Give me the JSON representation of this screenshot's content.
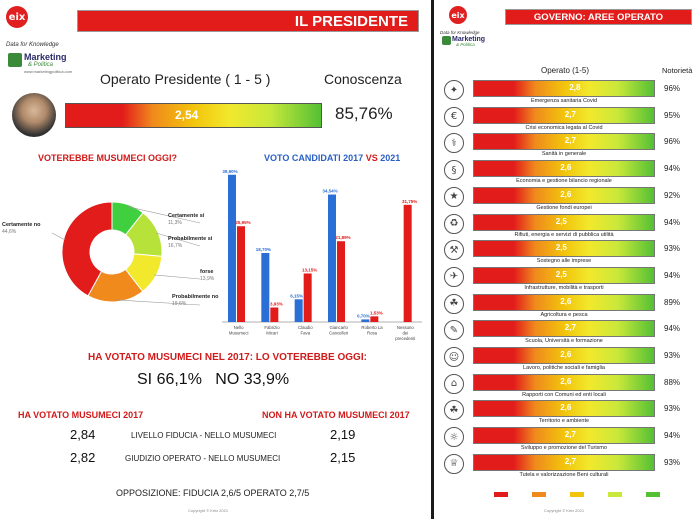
{
  "left": {
    "brand": {
      "logo_text": "eix",
      "tagline": "Data for Knowledge",
      "marketing": "Marketing",
      "politica": "& Politica",
      "site": "www.marketingpolitica.com"
    },
    "banner_title": "IL PRESIDENTE",
    "operato_label": "Operato Presidente ( 1 - 5 )",
    "operato_value": "2,54",
    "conoscenza_label": "Conoscenza",
    "conoscenza_value": "85,76%",
    "donut_title": "VOTEREBBE MUSUMECI OGGI?",
    "bar_title_a": "VOTO CANDIDATI 2017",
    "bar_title_vs": "VS",
    "bar_title_b": "2021",
    "ha_votato_title": "HA VOTATO MUSUMECI NEL 2017: LO VOTEREBBE OGGI:",
    "si_no": "SI 66,1%   NO 33,9%",
    "col_a_title": "HA VOTATO MUSUMECI 2017",
    "col_b_title": "NON HA VOTATO MUSUMECI 2017",
    "rows": [
      {
        "a": "2,84",
        "label": "LIVELLO FIDUCIA - NELLO MUSUMECI",
        "b": "2,19"
      },
      {
        "a": "2,82",
        "label": "GIUDIZIO OPERATO - NELLO MUSUMECI",
        "b": "2,15"
      }
    ],
    "opposizione": "OPPOSIZIONE: FIDUCIA 2,6/5 OPERATO 2,7/5",
    "copyright": "Copyright © Keix 2021"
  },
  "right": {
    "brand": {
      "logo_text": "eix",
      "tagline": "Data for Knowledge",
      "marketing": "Marketing",
      "politica": "& Politica"
    },
    "banner_title": "GOVERNO: AREE OPERATO",
    "col_operato": "Operato (1-5)",
    "col_notorieta": "Notorietà",
    "copyright": "Copyright © Keix 2021"
  },
  "colors": {
    "red": "#e21b1b",
    "blue": "#2a6fd6",
    "orange": "#f08a1c",
    "yellow": "#f2c40c",
    "lightyellow": "#f2e82c",
    "green": "#54c034"
  },
  "chart_data": [
    {
      "type": "pie",
      "title": "VOTEREBBE MUSUMECI OGGI?",
      "labels": [
        "Certamente si",
        "Probabilmente si",
        "forse",
        "Probabilmente no",
        "Certamente no"
      ],
      "values": [
        11.3,
        16.7,
        13.9,
        19.6,
        44.6
      ],
      "value_labels": [
        "11,3%",
        "16,7%",
        "13,9%",
        "19,6%",
        "44,6%"
      ],
      "colors": [
        "#3fcf3f",
        "#b6e23a",
        "#f2e82c",
        "#f08a1c",
        "#e21b1b"
      ],
      "donut": true
    },
    {
      "type": "bar",
      "title": "VOTO CANDIDATI 2017 VS 2021",
      "categories": [
        "Nello Musumeci",
        "Fabrizio Micari",
        "Claudio Fava",
        "Giancarlo Cancelleri",
        "Roberto La Rosa",
        "Nessuno dei precedenti"
      ],
      "series": [
        {
          "name": "2017",
          "color": "#2a6fd6",
          "values": [
            39.9,
            18.7,
            6.15,
            34.54,
            0.7,
            null
          ],
          "labels": [
            "39,90%",
            "18,70%",
            "6,15%",
            "34,54%",
            "0,70%",
            ""
          ]
        },
        {
          "name": "2021",
          "color": "#e21b1b",
          "values": [
            25.95,
            3.93,
            13.15,
            21.89,
            1.53,
            31.75
          ],
          "labels": [
            "25,95%",
            "3,93%",
            "13,15%",
            "21,89%",
            "1,53%",
            "31,75%"
          ]
        }
      ],
      "ylim": [
        0,
        42
      ]
    },
    {
      "type": "bar",
      "title": "GOVERNO: AREE OPERATO",
      "orientation": "horizontal",
      "categories": [
        "Emergenza sanitaria Covid",
        "Crisi economica legata al Covid",
        "Sanità in generale",
        "Economia e gestione bilancio regionale",
        "Gestione fondi europei",
        "Rifiuti, energia e servizi di pubblica utilità",
        "Sostegno alle imprese",
        "Infrastrutture, mobilità e trasporti",
        "Agricoltura e pesca",
        "Scuola, Università e formazione",
        "Lavoro, politiche sociali e famiglia",
        "Rapporti con Comuni ed enti locali",
        "Territorio e ambiente",
        "Sviluppo e promozione del Turismo",
        "Tutela e valorizzazione Beni culturali"
      ],
      "values": [
        2.8,
        2.7,
        2.7,
        2.6,
        2.6,
        2.5,
        2.5,
        2.5,
        2.6,
        2.7,
        2.6,
        2.6,
        2.6,
        2.7,
        2.7
      ],
      "value_labels": [
        "2,8",
        "2,7",
        "2,7",
        "2,6",
        "2,6",
        "2,5",
        "2,5",
        "2,5",
        "2,6",
        "2,7",
        "2,6",
        "2,6",
        "2,6",
        "2,7",
        "2,7"
      ],
      "notorieta": [
        "96%",
        "95%",
        "96%",
        "94%",
        "92%",
        "94%",
        "93%",
        "94%",
        "89%",
        "94%",
        "93%",
        "88%",
        "93%",
        "94%",
        "93%"
      ],
      "xlim": [
        1,
        5
      ]
    }
  ]
}
